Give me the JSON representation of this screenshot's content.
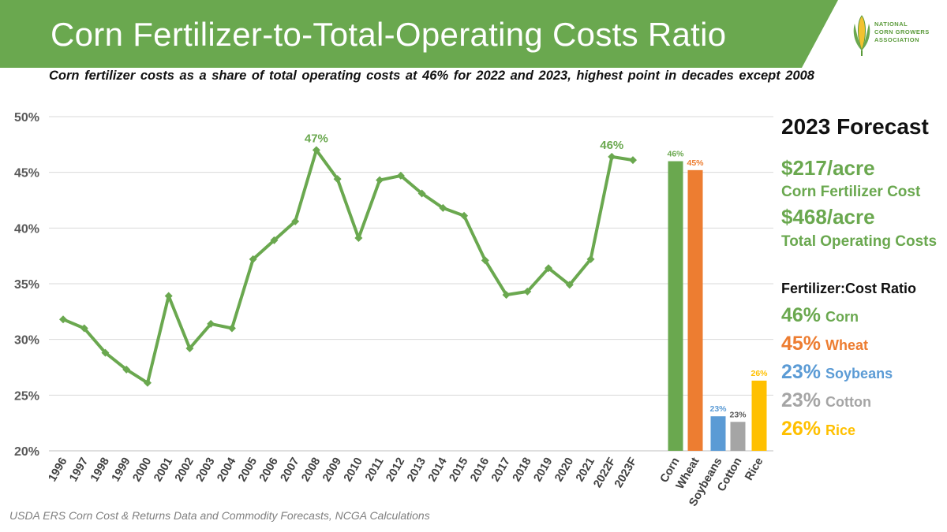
{
  "title": "Corn Fertilizer-to-Total-Operating Costs Ratio",
  "subtitle": "Corn fertilizer costs as a share of total operating costs at 46% for 2022 and 2023, highest point in decades except 2008",
  "logo": {
    "lines": [
      "NATIONAL",
      "CORN GROWERS",
      "ASSOCIATION"
    ]
  },
  "source": "USDA ERS Corn Cost & Returns Data and Commodity Forecasts, NCGA Calculations",
  "colors": {
    "banner": "#6aa84f",
    "line": "#6aa84f",
    "corn": "#6aa84f",
    "wheat": "#ed7d31",
    "soybeans": "#5b9bd5",
    "cotton": "#a5a5a5",
    "rice": "#ffc000"
  },
  "forecast": {
    "title": "2023 Forecast",
    "fert_value": "$217/acre",
    "fert_label": "Corn Fertilizer Cost",
    "total_value": "$468/acre",
    "total_label": "Total Operating Costs",
    "ratio_title": "Fertilizer:Cost Ratio",
    "ratios": [
      {
        "pct": "46%",
        "crop": "Corn"
      },
      {
        "pct": "45%",
        "crop": "Wheat"
      },
      {
        "pct": "23%",
        "crop": "Soybeans"
      },
      {
        "pct": "23%",
        "crop": "Cotton"
      },
      {
        "pct": "26%",
        "crop": "Rice"
      }
    ]
  },
  "chart_data": [
    {
      "type": "line",
      "title": "Corn Fertilizer-to-Total-Operating Costs Ratio",
      "x": [
        "1996",
        "1997",
        "1998",
        "1999",
        "2000",
        "2001",
        "2002",
        "2003",
        "2004",
        "2005",
        "2006",
        "2007",
        "2008",
        "2009",
        "2010",
        "2011",
        "2012",
        "2013",
        "2014",
        "2015",
        "2016",
        "2017",
        "2018",
        "2019",
        "2020",
        "2021",
        "2022F",
        "2023F"
      ],
      "values": [
        31.8,
        31.0,
        28.8,
        27.3,
        26.1,
        33.9,
        29.2,
        31.4,
        31.0,
        37.2,
        38.9,
        40.6,
        47.0,
        44.4,
        39.1,
        44.3,
        44.7,
        43.1,
        41.8,
        41.1,
        37.1,
        34.0,
        34.3,
        36.4,
        34.9,
        37.2,
        46.4,
        46.1
      ],
      "annotations": [
        {
          "x": "2008",
          "label": "47%"
        },
        {
          "x": "2022F",
          "label": "46%"
        }
      ],
      "yticks": [
        "20%",
        "25%",
        "30%",
        "35%",
        "40%",
        "45%",
        "50%"
      ],
      "ylim": [
        20,
        50
      ]
    },
    {
      "type": "bar",
      "categories": [
        "Corn",
        "Wheat",
        "Soybeans",
        "Cotton",
        "Rice"
      ],
      "values": [
        46.0,
        45.2,
        23.1,
        22.6,
        26.3
      ],
      "labels": [
        "46%",
        "45%",
        "23%",
        "23%",
        "26%"
      ],
      "ylim": [
        20,
        50
      ]
    }
  ]
}
